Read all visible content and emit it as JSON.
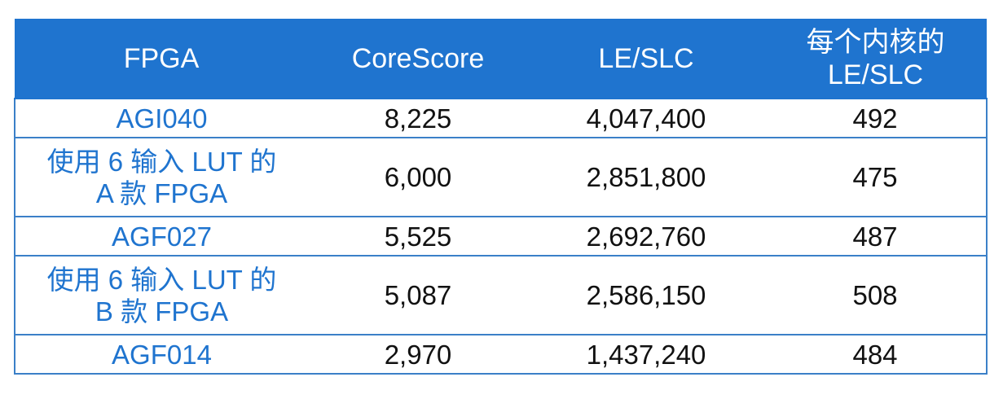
{
  "table": {
    "headers": [
      {
        "lines": [
          "FPGA"
        ]
      },
      {
        "lines": [
          "CoreScore"
        ]
      },
      {
        "lines": [
          "LE/SLC"
        ]
      },
      {
        "lines": [
          "每个内核的",
          "LE/SLC"
        ]
      }
    ],
    "rows": [
      {
        "fpga": [
          "AGI040"
        ],
        "corescore": "8,225",
        "le_slc": "4,047,400",
        "per_core": "492"
      },
      {
        "fpga": [
          "使用 6 输入 LUT 的",
          "A 款 FPGA"
        ],
        "corescore": "6,000",
        "le_slc": "2,851,800",
        "per_core": "475"
      },
      {
        "fpga": [
          "AGF027"
        ],
        "corescore": "5,525",
        "le_slc": "2,692,760",
        "per_core": "487"
      },
      {
        "fpga": [
          "使用 6 输入 LUT 的",
          "B 款 FPGA"
        ],
        "corescore": "5,087",
        "le_slc": "2,586,150",
        "per_core": "508"
      },
      {
        "fpga": [
          "AGF014"
        ],
        "corescore": "2,970",
        "le_slc": "1,437,240",
        "per_core": "484"
      }
    ]
  },
  "colors": {
    "header_bg": "#1f74cf",
    "header_text": "#ffffff",
    "fpga_text": "#1f74cf",
    "body_text": "#111111",
    "border": "#3b80c8"
  }
}
